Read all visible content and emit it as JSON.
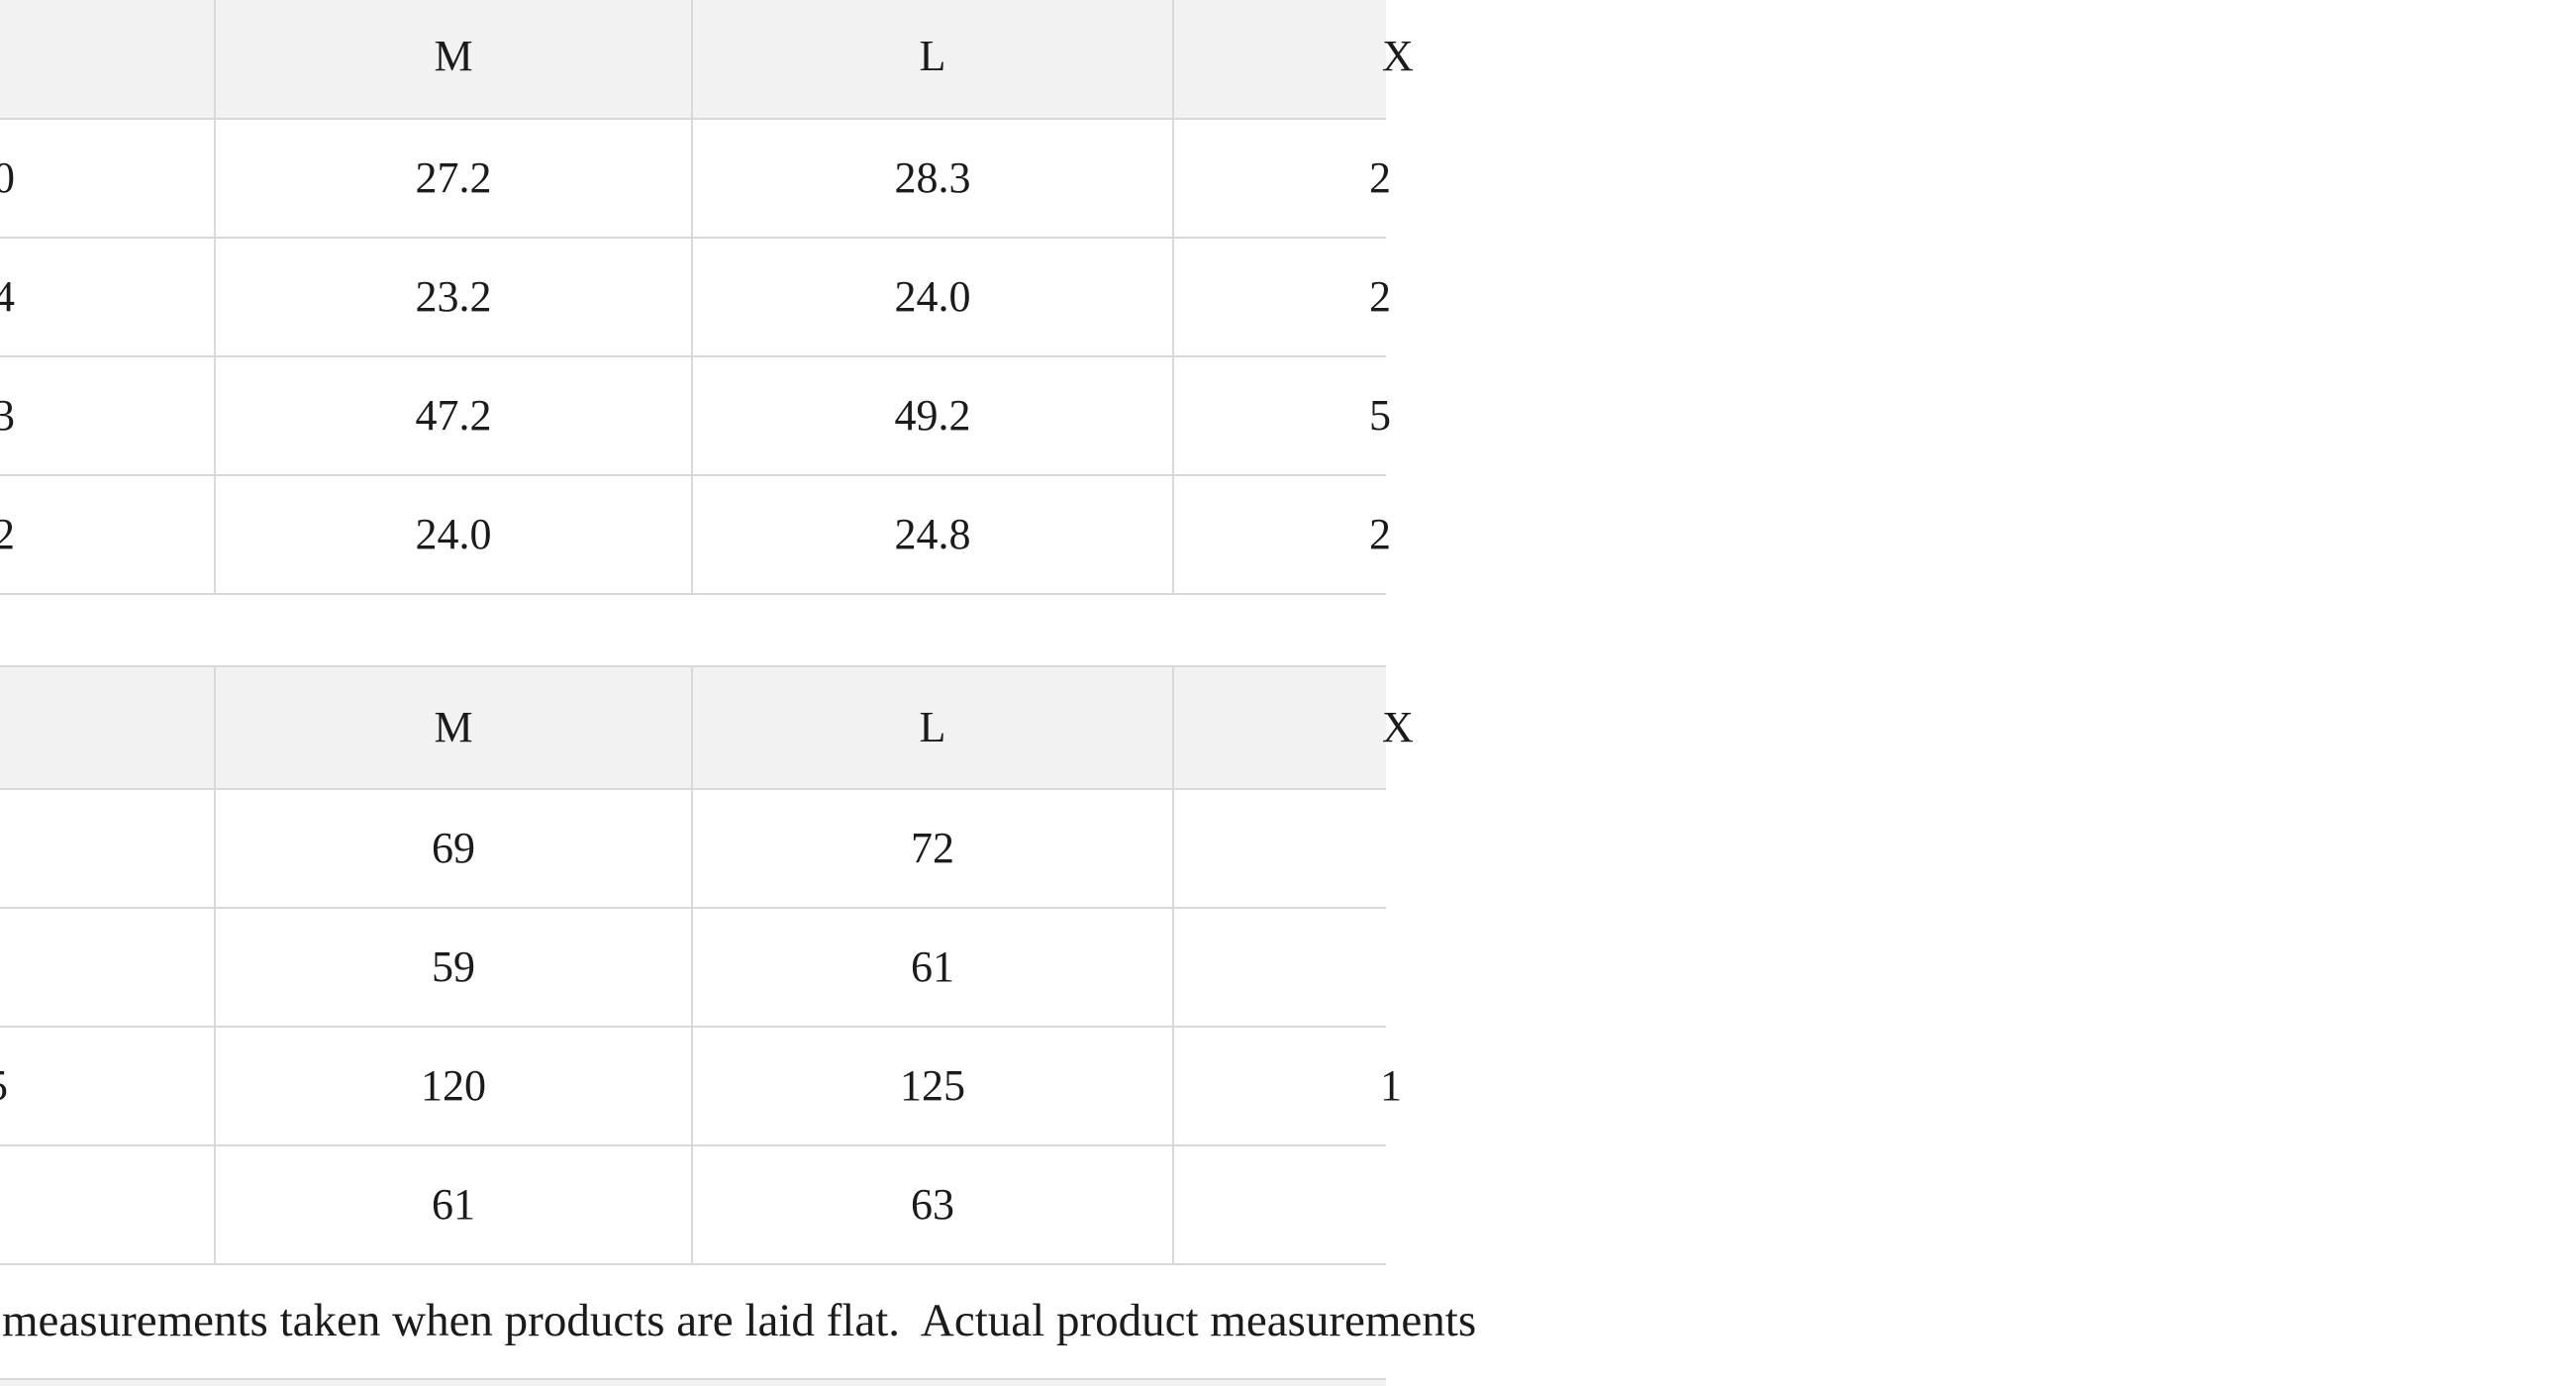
{
  "colors": {
    "header_bg": "#f2f2f2",
    "border": "#d9d9d9",
    "text": "#1b1b1b",
    "page_bg": "#ffffff"
  },
  "table_top": {
    "headers": {
      "m": "M",
      "l": "L",
      "next_col_fragment": "X"
    },
    "rows": [
      {
        "left_fragment": "0",
        "m": "27.2",
        "l": "28.3",
        "right_fragment": "2"
      },
      {
        "left_fragment": "4",
        "m": "23.2",
        "l": "24.0",
        "right_fragment": "2"
      },
      {
        "left_fragment": "3",
        "m": "47.2",
        "l": "49.2",
        "right_fragment": "5"
      },
      {
        "left_fragment": "2",
        "m": "24.0",
        "l": "24.8",
        "right_fragment": "2"
      }
    ]
  },
  "table_bottom": {
    "headers": {
      "m": "M",
      "l": "L",
      "next_col_fragment": "X"
    },
    "rows": [
      {
        "left_fragment": "",
        "m": "69",
        "l": "72",
        "right_fragment": ""
      },
      {
        "left_fragment": "",
        "m": "59",
        "l": "61",
        "right_fragment": ""
      },
      {
        "left_fragment": "5",
        "m": "120",
        "l": "125",
        "right_fragment": "1"
      },
      {
        "left_fragment": "",
        "m": "61",
        "l": "63",
        "right_fragment": ""
      }
    ]
  },
  "footnote": {
    "text": "measurements taken when products are laid flat.  Actual product measurements"
  }
}
